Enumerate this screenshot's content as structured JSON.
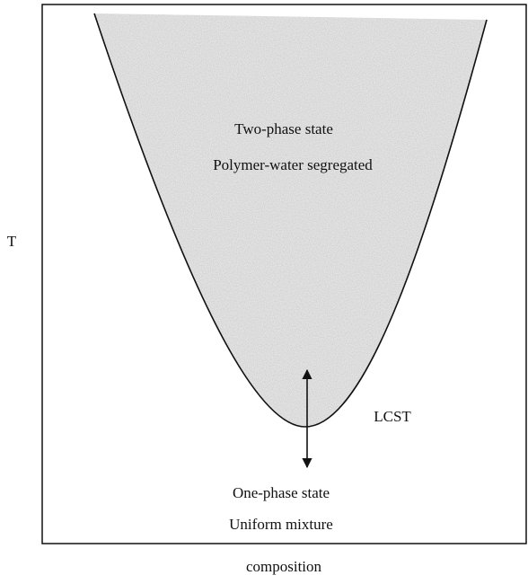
{
  "axes": {
    "y_label": "T",
    "x_label": "composition"
  },
  "regions": [
    {
      "title": "Two-phase state",
      "subtitle": "Polymer-water segregated"
    },
    {
      "title": "One-phase state",
      "subtitle": "Uniform mixture"
    }
  ],
  "annotation": "LCST"
}
